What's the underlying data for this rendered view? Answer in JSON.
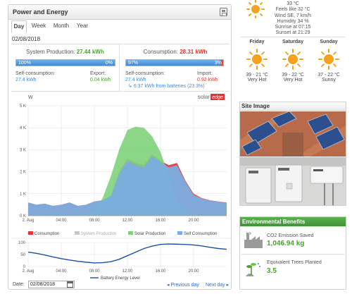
{
  "panel": {
    "title": "Power and Energy"
  },
  "tabs": [
    {
      "label": "Day",
      "active": true
    },
    {
      "label": "Week",
      "active": false
    },
    {
      "label": "Month",
      "active": false
    },
    {
      "label": "Year",
      "active": false
    }
  ],
  "current_date": "02/08/2018",
  "production": {
    "label": "System Production:",
    "value": "27.44 kWh",
    "bar_left_label": "100%",
    "bar_right_label": "0%",
    "self_consumption_fraction": 1.0,
    "self_consumption_label": "Self-consumption:",
    "self_consumption_value": "27.4 kWh",
    "export_label": "Export:",
    "export_value": "0.04 kWh"
  },
  "consumption": {
    "label": "Consumption:",
    "value": "28.31 kWh",
    "bar_left_label": "97%",
    "bar_right_label": "3%",
    "self_consumption_fraction": 0.97,
    "self_consumption_label": "Self-consumption:",
    "self_consumption_value": "27.4 kWh",
    "battery_note": "6.37 kWh from batteries (23.3%)",
    "import_label": "Import:",
    "import_value": "0.92 kWh"
  },
  "brand": {
    "name": "solar",
    "suffix": "edge"
  },
  "chart_data": [
    {
      "type": "area",
      "ylabel": "W",
      "ylim": [
        0,
        5000
      ],
      "yticks": [
        "0 K",
        "1 K",
        "2 K",
        "3 K",
        "4 K",
        "5 K"
      ],
      "xticks": [
        "2. Aug",
        "04:00",
        "08:00",
        "12:00",
        "16:00",
        "20:00"
      ],
      "x_hours": [
        0,
        1,
        2,
        3,
        4,
        5,
        6,
        7,
        8,
        9,
        10,
        11,
        12,
        13,
        14,
        15,
        16,
        17,
        18,
        19,
        20,
        21,
        22,
        23,
        24
      ],
      "series": [
        {
          "name": "Consumption",
          "color": "#e0343a",
          "values": [
            600,
            500,
            550,
            450,
            500,
            600,
            450,
            500,
            650,
            700,
            900,
            2000,
            2600,
            2400,
            2300,
            2800,
            2500,
            2300,
            2400,
            1600,
            1000,
            800,
            700,
            650,
            600
          ]
        },
        {
          "name": "System Production",
          "color": "#c7c7c7",
          "values": [
            0,
            0,
            0,
            0,
            0,
            0,
            0,
            50,
            250,
            800,
            1800,
            3000,
            3900,
            4050,
            4000,
            3600,
            2900,
            1800,
            700,
            150,
            20,
            0,
            0,
            0,
            0
          ]
        },
        {
          "name": "Solar Production",
          "color": "#7fd27a",
          "values": [
            0,
            0,
            0,
            0,
            0,
            0,
            0,
            50,
            250,
            800,
            1800,
            3000,
            3900,
            4050,
            4000,
            3600,
            2900,
            1800,
            700,
            150,
            20,
            0,
            0,
            0,
            0
          ]
        },
        {
          "name": "Self Consumption",
          "color": "#7aaee0",
          "values": [
            600,
            500,
            550,
            450,
            500,
            600,
            450,
            500,
            650,
            700,
            900,
            1900,
            2500,
            2300,
            2200,
            2700,
            2450,
            2200,
            2300,
            1550,
            950,
            780,
            690,
            640,
            590
          ]
        }
      ],
      "legend": "bottom"
    },
    {
      "type": "line",
      "ylim": [
        0,
        100
      ],
      "yticks": [
        "0",
        "50",
        "100"
      ],
      "xticks": [
        "2. Aug",
        "04:00",
        "08:00",
        "12:00",
        "16:00",
        "20:00"
      ],
      "x_hours": [
        0,
        1,
        2,
        3,
        4,
        5,
        6,
        7,
        8,
        9,
        10,
        11,
        12,
        13,
        14,
        15,
        16,
        17,
        18,
        19,
        20,
        21,
        22,
        23,
        24
      ],
      "series": [
        {
          "name": "Battery Energy Level",
          "color": "#1f4fa0",
          "values": [
            60,
            55,
            48,
            40,
            33,
            27,
            22,
            18,
            15,
            16,
            20,
            30,
            45,
            60,
            75,
            85,
            92,
            94,
            93,
            92,
            90,
            86,
            80,
            75,
            72
          ]
        }
      ],
      "legend": "bottom"
    }
  ],
  "footer": {
    "date_label": "Date:",
    "date_value": "02/08/2018",
    "prev_label": "Previous day",
    "next_label": "Next day"
  },
  "weather": {
    "temp": "33 °C",
    "feels_like": "Feels like 32 °C",
    "wind": "Wind SE, 7 km/h",
    "humidity": "Humidity 34 %",
    "sunrise": "Sunrise at 07:15",
    "sunset": "Sunset at 21:29",
    "forecast": [
      {
        "day": "Friday",
        "temp": "39 - 21 °C",
        "desc": "Very Hot",
        "icon": "sun-icon"
      },
      {
        "day": "Saturday",
        "temp": "39 - 22 °C",
        "desc": "Very Hot",
        "icon": "sun-icon"
      },
      {
        "day": "Sunday",
        "temp": "37 - 22 °C",
        "desc": "Sunny",
        "icon": "sun-icon"
      }
    ]
  },
  "site_image": {
    "title": "Site Image"
  },
  "environment": {
    "title": "Environmental Benefits",
    "co2_label": "CO2 Emission Saved",
    "co2_value": "1,046.94 kg",
    "trees_label": "Equivalent Trees Planted",
    "trees_value": "3.5"
  }
}
